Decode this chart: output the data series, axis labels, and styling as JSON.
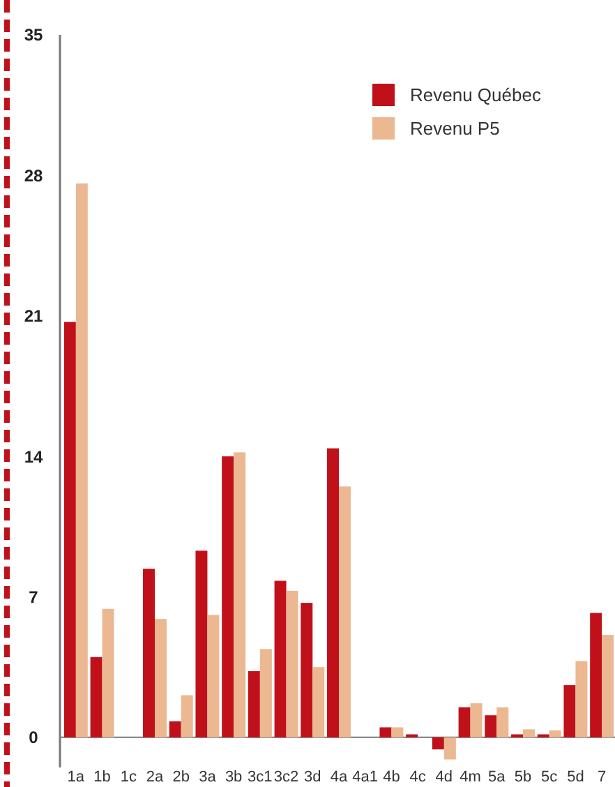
{
  "chart_data": {
    "type": "bar",
    "categories": [
      "1a",
      "1b",
      "1c",
      "2a",
      "2b",
      "3a",
      "3b",
      "3c1",
      "3c2",
      "3d",
      "4a",
      "4a1",
      "4b",
      "4c",
      "4d",
      "4m",
      "5a",
      "5b",
      "5c",
      "5d",
      "7"
    ],
    "series": [
      {
        "name": "Revenu Québec",
        "color": "#c0111b",
        "values": [
          20.7,
          4.0,
          0,
          8.4,
          0.8,
          9.3,
          14.0,
          3.3,
          7.8,
          6.7,
          14.4,
          null,
          0.5,
          0.15,
          -0.6,
          1.5,
          1.1,
          0.15,
          0.15,
          2.6,
          6.2
        ]
      },
      {
        "name": "Revenu P5",
        "color": "#ebb891",
        "values": [
          27.6,
          6.4,
          0,
          5.9,
          2.1,
          6.1,
          14.2,
          4.4,
          7.3,
          3.5,
          12.5,
          null,
          0.5,
          0,
          -1.1,
          1.7,
          1.5,
          0.4,
          0.35,
          3.8,
          5.1
        ]
      }
    ],
    "ylim": [
      -1.5,
      35
    ],
    "yticks": [
      0,
      7,
      14,
      21,
      28,
      35
    ],
    "grid": false,
    "legend": "top right"
  }
}
